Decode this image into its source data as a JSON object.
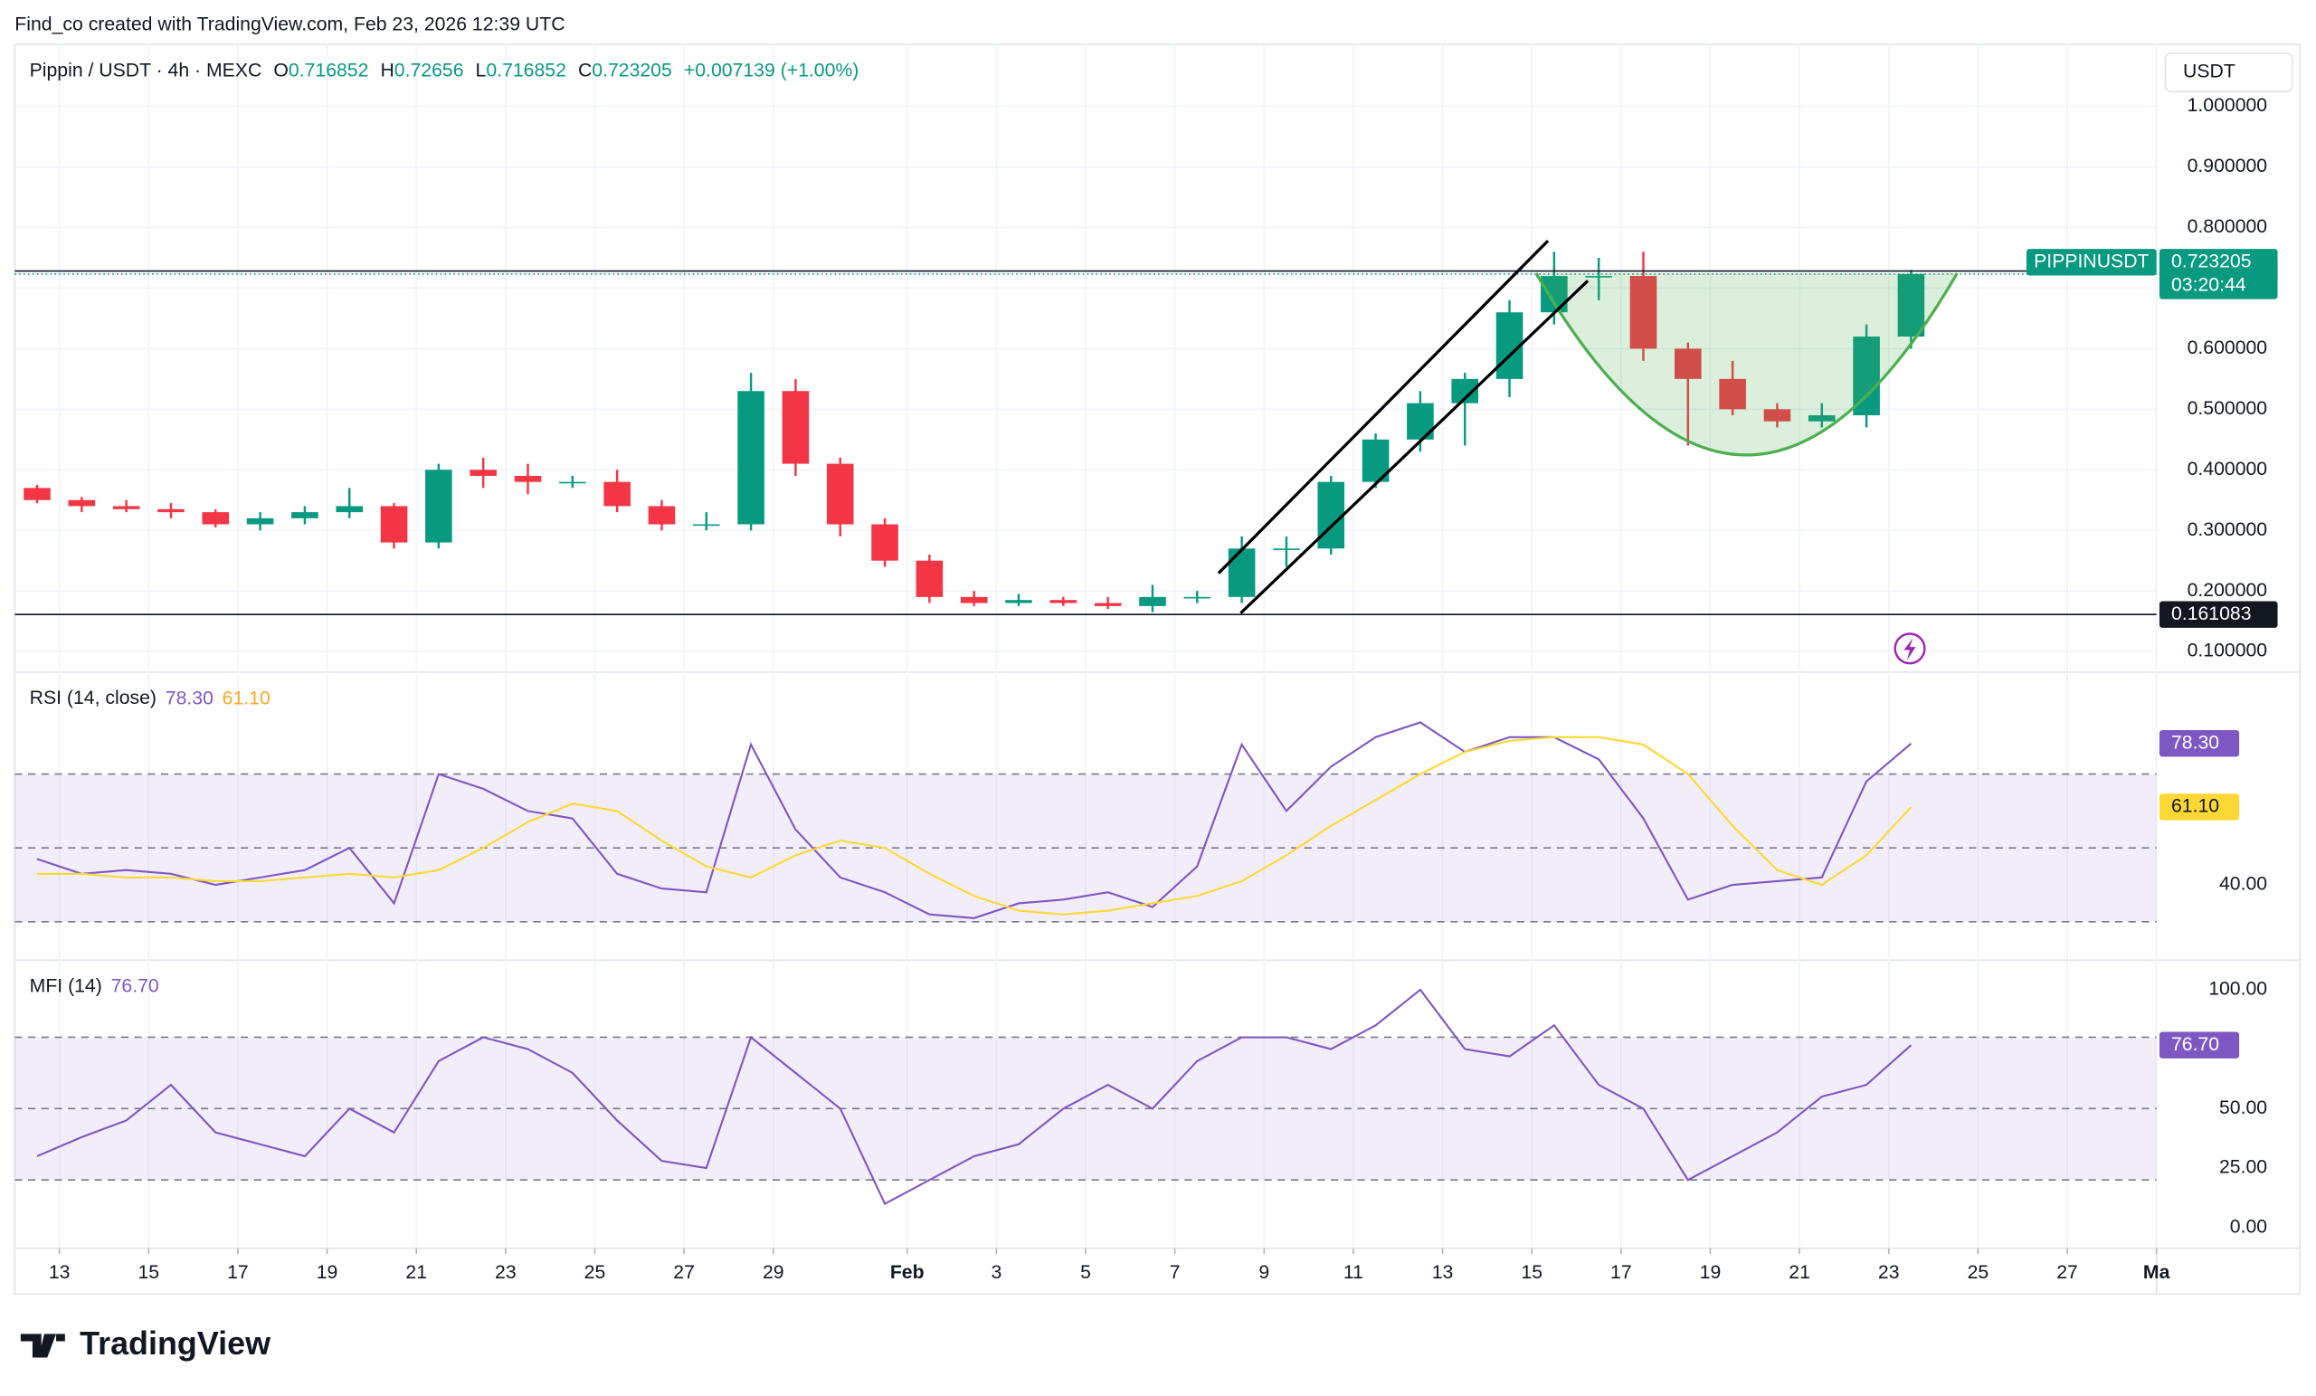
{
  "header": "Find_co created with TradingView.com, Feb 23, 2026 12:39 UTC",
  "legend": {
    "symbol": "Pippin / USDT · 4h · MEXC",
    "open_label": "O",
    "open": 0.716852,
    "high_label": "H",
    "high": 0.72656,
    "low_label": "L",
    "low": 0.716852,
    "close_label": "C",
    "close": 0.723205,
    "change": "+0.007139 (+1.00%)"
  },
  "currency": "USDT",
  "logo": "TradingView",
  "chart_data": [
    {
      "type": "candlestick",
      "panel": "price",
      "x": [
        "2026-01-12",
        "2026-01-13",
        "2026-01-14",
        "2026-01-15",
        "2026-01-16",
        "2026-01-17",
        "2026-01-18",
        "2026-01-19",
        "2026-01-20",
        "2026-01-21",
        "2026-01-22",
        "2026-01-23",
        "2026-01-24",
        "2026-01-25",
        "2026-01-26",
        "2026-01-27",
        "2026-01-28",
        "2026-01-29",
        "2026-01-30",
        "2026-01-31",
        "2026-02-01",
        "2026-02-02",
        "2026-02-03",
        "2026-02-04",
        "2026-02-05",
        "2026-02-06",
        "2026-02-07",
        "2026-02-08",
        "2026-02-09",
        "2026-02-10",
        "2026-02-11",
        "2026-02-12",
        "2026-02-13",
        "2026-02-14",
        "2026-02-15",
        "2026-02-16",
        "2026-02-17",
        "2026-02-18",
        "2026-02-19",
        "2026-02-20",
        "2026-02-21",
        "2026-02-22",
        "2026-02-23"
      ],
      "open": [
        0.37,
        0.35,
        0.34,
        0.335,
        0.33,
        0.31,
        0.32,
        0.33,
        0.34,
        0.28,
        0.4,
        0.39,
        0.38,
        0.38,
        0.34,
        0.31,
        0.31,
        0.53,
        0.41,
        0.31,
        0.25,
        0.19,
        0.18,
        0.185,
        0.18,
        0.175,
        0.19,
        0.19,
        0.27,
        0.27,
        0.38,
        0.45,
        0.51,
        0.55,
        0.66,
        0.72,
        0.72,
        0.6,
        0.55,
        0.5,
        0.48,
        0.49,
        0.62
      ],
      "high": [
        0.375,
        0.355,
        0.35,
        0.345,
        0.335,
        0.33,
        0.34,
        0.37,
        0.345,
        0.41,
        0.42,
        0.41,
        0.39,
        0.4,
        0.35,
        0.33,
        0.56,
        0.55,
        0.42,
        0.32,
        0.26,
        0.2,
        0.195,
        0.19,
        0.19,
        0.21,
        0.2,
        0.29,
        0.29,
        0.39,
        0.46,
        0.53,
        0.56,
        0.68,
        0.76,
        0.75,
        0.76,
        0.61,
        0.58,
        0.51,
        0.51,
        0.64,
        0.73
      ],
      "low": [
        0.345,
        0.33,
        0.33,
        0.32,
        0.305,
        0.3,
        0.31,
        0.32,
        0.27,
        0.27,
        0.37,
        0.36,
        0.37,
        0.33,
        0.3,
        0.3,
        0.3,
        0.39,
        0.29,
        0.24,
        0.18,
        0.175,
        0.175,
        0.175,
        0.17,
        0.165,
        0.18,
        0.18,
        0.24,
        0.26,
        0.37,
        0.43,
        0.44,
        0.52,
        0.64,
        0.68,
        0.58,
        0.44,
        0.49,
        0.47,
        0.47,
        0.47,
        0.6
      ],
      "close": [
        0.35,
        0.34,
        0.335,
        0.33,
        0.31,
        0.32,
        0.33,
        0.34,
        0.28,
        0.4,
        0.39,
        0.38,
        0.38,
        0.34,
        0.31,
        0.31,
        0.53,
        0.41,
        0.31,
        0.25,
        0.19,
        0.18,
        0.185,
        0.18,
        0.175,
        0.19,
        0.19,
        0.27,
        0.27,
        0.38,
        0.45,
        0.51,
        0.55,
        0.66,
        0.72,
        0.72,
        0.6,
        0.55,
        0.5,
        0.48,
        0.49,
        0.62,
        0.723205
      ],
      "up_color": "#089981",
      "down_color": "#f23645",
      "xlim": [
        "2026-01-12",
        "2026-03-01"
      ],
      "xticks": [
        {
          "value": "2026-01-13",
          "label": "13"
        },
        {
          "value": "2026-01-15",
          "label": "15"
        },
        {
          "value": "2026-01-17",
          "label": "17"
        },
        {
          "value": "2026-01-19",
          "label": "19"
        },
        {
          "value": "2026-01-21",
          "label": "21"
        },
        {
          "value": "2026-01-23",
          "label": "23"
        },
        {
          "value": "2026-01-25",
          "label": "25"
        },
        {
          "value": "2026-01-27",
          "label": "27"
        },
        {
          "value": "2026-01-29",
          "label": "29"
        },
        {
          "value": "2026-02-01",
          "label": "Feb"
        },
        {
          "value": "2026-02-03",
          "label": "3"
        },
        {
          "value": "2026-02-05",
          "label": "5"
        },
        {
          "value": "2026-02-07",
          "label": "7"
        },
        {
          "value": "2026-02-09",
          "label": "9"
        },
        {
          "value": "2026-02-11",
          "label": "11"
        },
        {
          "value": "2026-02-13",
          "label": "13"
        },
        {
          "value": "2026-02-15",
          "label": "15"
        },
        {
          "value": "2026-02-17",
          "label": "17"
        },
        {
          "value": "2026-02-19",
          "label": "19"
        },
        {
          "value": "2026-02-21",
          "label": "21"
        },
        {
          "value": "2026-02-23",
          "label": "23"
        },
        {
          "value": "2026-02-25",
          "label": "25"
        },
        {
          "value": "2026-02-27",
          "label": "27"
        },
        {
          "value": "2026-03-01",
          "label": "Ma"
        }
      ],
      "ylim": [
        0.0659,
        1.1024
      ],
      "yticks": [
        {
          "value": 0.1,
          "label": "0.100000"
        },
        {
          "value": 0.2,
          "label": "0.200000"
        },
        {
          "value": 0.3,
          "label": "0.300000"
        },
        {
          "value": 0.4,
          "label": "0.400000"
        },
        {
          "value": 0.5,
          "label": "0.500000"
        },
        {
          "value": 0.6,
          "label": "0.600000"
        },
        {
          "value": 0.7,
          "label": "0.700000"
        },
        {
          "value": 0.8,
          "label": "0.800000"
        },
        {
          "value": 0.9,
          "label": "0.900000"
        },
        {
          "value": 1.0,
          "label": "1.000000"
        }
      ],
      "grid": true,
      "levels": [
        {
          "value": 0.728131,
          "color": "#131722"
        },
        {
          "value": 0.723205,
          "color": "#089981",
          "symbol": "PIPPINUSDT",
          "countdown": "03:20:44"
        },
        {
          "value": 0.161083,
          "color": "#131722"
        }
      ]
    },
    {
      "type": "line",
      "panel": "rsi",
      "title": "RSI (14, close)",
      "series": [
        {
          "name": "RSI",
          "color": "#7e57c2",
          "values": [
            47,
            43,
            44,
            43,
            40,
            42,
            44,
            50,
            35,
            70,
            66,
            60,
            58,
            43,
            39,
            38,
            78,
            55,
            42,
            38,
            32,
            31,
            35,
            36,
            38,
            34,
            45,
            78,
            60,
            72,
            80,
            84,
            76,
            80,
            80,
            74,
            58,
            36,
            40,
            41,
            42,
            68,
            78.3
          ],
          "last": {
            "value": 78.3,
            "label": "78.30"
          }
        },
        {
          "name": "RSI MA",
          "color": "#fdd835",
          "values": [
            43,
            43,
            42,
            42,
            41,
            41,
            42,
            43,
            42,
            44,
            50,
            57,
            62,
            60,
            52,
            45,
            42,
            48,
            52,
            50,
            43,
            37,
            33,
            32,
            33,
            35,
            37,
            41,
            48,
            56,
            63,
            70,
            76,
            79,
            80,
            80,
            78,
            70,
            56,
            44,
            40,
            48,
            61.1
          ],
          "last": {
            "value": 61.1,
            "label": "61.10"
          }
        }
      ],
      "ylim": [
        19.6,
        97.6
      ],
      "yticks": [
        {
          "value": 40,
          "label": "40.00"
        }
      ],
      "bands": [
        30,
        50,
        70
      ]
    },
    {
      "type": "line",
      "panel": "mfi",
      "title": "MFI (14)",
      "series": [
        {
          "name": "MFI",
          "color": "#7e57c2",
          "values": [
            30,
            38,
            45,
            60,
            40,
            35,
            30,
            50,
            40,
            70,
            80,
            75,
            65,
            45,
            28,
            25,
            80,
            65,
            50,
            10,
            20,
            30,
            35,
            50,
            60,
            50,
            70,
            80,
            80,
            75,
            85,
            100,
            75,
            72,
            85,
            60,
            50,
            20,
            30,
            40,
            55,
            60,
            76.7
          ],
          "last": {
            "value": 76.7,
            "label": "76.70"
          }
        }
      ],
      "ylim": [
        -8.7,
        112.4
      ],
      "yticks": [
        {
          "value": 0,
          "label": "0.00"
        },
        {
          "value": 25,
          "label": "25.00"
        },
        {
          "value": 50,
          "label": "50.00"
        },
        {
          "value": 100,
          "label": "100.00"
        }
      ],
      "bands": [
        20,
        50,
        80
      ]
    }
  ]
}
